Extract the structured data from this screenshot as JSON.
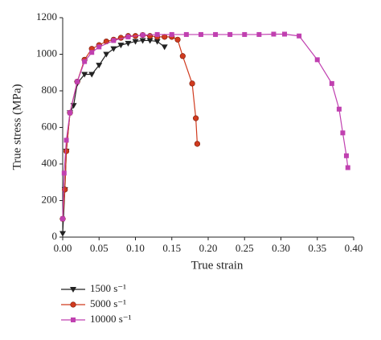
{
  "chart_data": {
    "type": "line",
    "xlabel": "True strain",
    "ylabel": "True stress (MPa)",
    "xlim": [
      0,
      0.4
    ],
    "ylim": [
      0,
      1200
    ],
    "xticks": [
      {
        "value": 0,
        "label": "0.00"
      },
      {
        "value": 0.05,
        "label": "0.05"
      },
      {
        "value": 0.1,
        "label": "0.10"
      },
      {
        "value": 0.15,
        "label": "0.15"
      },
      {
        "value": 0.2,
        "label": "0.20"
      },
      {
        "value": 0.25,
        "label": "0.25"
      },
      {
        "value": 0.3,
        "label": "0.30"
      },
      {
        "value": 0.35,
        "label": "0.35"
      },
      {
        "value": 0.4,
        "label": "0.40"
      }
    ],
    "yticks": [
      0,
      200,
      400,
      600,
      800,
      1000,
      1200
    ],
    "series": [
      {
        "name": "1500 s⁻¹",
        "color": "#222222",
        "marker": "triangle-down",
        "x": [
          0,
          0.003,
          0.005,
          0.01,
          0.015,
          0.02,
          0.03,
          0.04,
          0.05,
          0.06,
          0.07,
          0.08,
          0.09,
          0.1,
          0.11,
          0.12,
          0.13,
          0.14
        ],
        "values": [
          20,
          260,
          470,
          680,
          720,
          840,
          890,
          890,
          940,
          1000,
          1030,
          1050,
          1060,
          1070,
          1075,
          1075,
          1070,
          1040
        ]
      },
      {
        "name": "5000 s⁻¹",
        "color": "#d03a1e",
        "marker": "circle",
        "x": [
          0,
          0.003,
          0.005,
          0.01,
          0.02,
          0.03,
          0.04,
          0.05,
          0.06,
          0.07,
          0.08,
          0.09,
          0.1,
          0.11,
          0.12,
          0.13,
          0.14,
          0.15,
          0.158,
          0.165,
          0.178,
          0.183,
          0.185
        ],
        "values": [
          100,
          260,
          470,
          680,
          850,
          970,
          1030,
          1050,
          1070,
          1080,
          1090,
          1100,
          1100,
          1105,
          1100,
          1095,
          1095,
          1095,
          1080,
          990,
          840,
          650,
          510
        ]
      },
      {
        "name": "10000 s⁻¹",
        "color": "#c040b0",
        "marker": "square",
        "x": [
          0,
          0.002,
          0.005,
          0.01,
          0.02,
          0.03,
          0.04,
          0.05,
          0.07,
          0.09,
          0.11,
          0.13,
          0.15,
          0.17,
          0.19,
          0.21,
          0.23,
          0.25,
          0.27,
          0.29,
          0.305,
          0.325,
          0.35,
          0.37,
          0.38,
          0.385,
          0.39,
          0.392
        ],
        "values": [
          100,
          350,
          530,
          680,
          850,
          960,
          1010,
          1040,
          1075,
          1095,
          1105,
          1108,
          1108,
          1108,
          1108,
          1108,
          1108,
          1108,
          1108,
          1110,
          1110,
          1100,
          970,
          840,
          700,
          570,
          445,
          380
        ]
      }
    ]
  }
}
